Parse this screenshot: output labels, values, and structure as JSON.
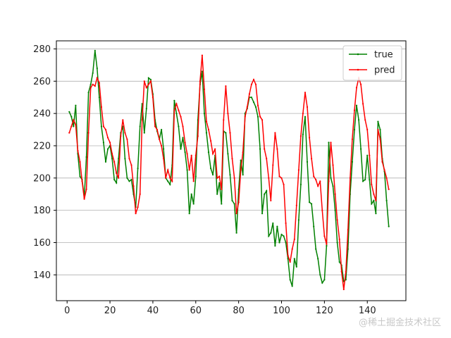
{
  "chart_data": {
    "type": "line",
    "title": "",
    "xlabel": "",
    "ylabel": "",
    "xlim": [
      -5,
      158
    ],
    "ylim": [
      124,
      285
    ],
    "xticks": [
      0,
      20,
      40,
      60,
      80,
      100,
      120,
      140
    ],
    "yticks": [
      140,
      160,
      180,
      200,
      220,
      240,
      260,
      280
    ],
    "grid": "horizontal",
    "legend_position": "top-right",
    "series": [
      {
        "name": "true",
        "color": "#008000",
        "x": [
          1,
          2,
          3,
          4,
          5,
          6,
          7,
          8,
          9,
          10,
          11,
          12,
          13,
          14,
          15,
          16,
          17,
          18,
          19,
          20,
          21,
          22,
          23,
          24,
          25,
          26,
          27,
          28,
          29,
          30,
          31,
          32,
          33,
          34,
          35,
          36,
          37,
          38,
          39,
          40,
          41,
          42,
          43,
          44,
          45,
          46,
          47,
          48,
          49,
          50,
          51,
          52,
          53,
          54,
          55,
          56,
          57,
          58,
          59,
          60,
          61,
          62,
          63,
          64,
          65,
          66,
          67,
          68,
          69,
          70,
          71,
          72,
          73,
          74,
          75,
          76,
          77,
          78,
          79,
          80,
          81,
          82,
          83,
          84,
          85,
          86,
          87,
          88,
          89,
          90,
          91,
          92,
          93,
          94,
          95,
          96,
          97,
          98,
          99,
          100,
          101,
          102,
          103,
          104,
          105,
          106,
          107,
          108,
          109,
          110,
          111,
          112,
          113,
          114,
          115,
          116,
          117,
          118,
          119,
          120,
          121,
          122,
          123,
          124,
          125,
          126,
          127,
          128,
          129,
          130,
          131,
          132,
          133,
          134,
          135,
          136,
          137,
          138,
          139,
          140,
          141,
          142,
          143,
          144,
          145,
          146,
          147,
          148,
          149,
          150
        ],
        "values": [
          241,
          238,
          232,
          245,
          215,
          201,
          199,
          188,
          213,
          253,
          258,
          265,
          279,
          268,
          250,
          232,
          222,
          210,
          218,
          220,
          212,
          199,
          197,
          212,
          228,
          232,
          212,
          200,
          198,
          199,
          190,
          182,
          206,
          232,
          246,
          228,
          243,
          262,
          261,
          252,
          236,
          229,
          224,
          230,
          218,
          200,
          198,
          196,
          208,
          248,
          240,
          232,
          218,
          225,
          216,
          205,
          178,
          190,
          184,
          201,
          236,
          258,
          266,
          240,
          228,
          216,
          206,
          202,
          214,
          190,
          197,
          184,
          229,
          228,
          215,
          202,
          186,
          184,
          166,
          193,
          211,
          202,
          240,
          243,
          250,
          250,
          247,
          244,
          238,
          218,
          178,
          190,
          192,
          164,
          166,
          172,
          158,
          170,
          160,
          165,
          164,
          160,
          150,
          137,
          133,
          150,
          145,
          174,
          196,
          227,
          238,
          210,
          185,
          184,
          170,
          156,
          150,
          140,
          135,
          137,
          158,
          222,
          200,
          195,
          180,
          160,
          148,
          146,
          136,
          137,
          156,
          190,
          210,
          230,
          245,
          236,
          218,
          198,
          199,
          214,
          199,
          184,
          186,
          178,
          235,
          230,
          212,
          204,
          186,
          170
        ]
      },
      {
        "name": "pred",
        "color": "#ff0000",
        "x": [
          1,
          2,
          3,
          4,
          5,
          6,
          7,
          8,
          9,
          10,
          11,
          12,
          13,
          14,
          15,
          16,
          17,
          18,
          19,
          20,
          21,
          22,
          23,
          24,
          25,
          26,
          27,
          28,
          29,
          30,
          31,
          32,
          33,
          34,
          35,
          36,
          37,
          38,
          39,
          40,
          41,
          42,
          43,
          44,
          45,
          46,
          47,
          48,
          49,
          50,
          51,
          52,
          53,
          54,
          55,
          56,
          57,
          58,
          59,
          60,
          61,
          62,
          63,
          64,
          65,
          66,
          67,
          68,
          69,
          70,
          71,
          72,
          73,
          74,
          75,
          76,
          77,
          78,
          79,
          80,
          81,
          82,
          83,
          84,
          85,
          86,
          87,
          88,
          89,
          90,
          91,
          92,
          93,
          94,
          95,
          96,
          97,
          98,
          99,
          100,
          101,
          102,
          103,
          104,
          105,
          106,
          107,
          108,
          109,
          110,
          111,
          112,
          113,
          114,
          115,
          116,
          117,
          118,
          119,
          120,
          121,
          122,
          123,
          124,
          125,
          126,
          127,
          128,
          129,
          130,
          131,
          132,
          133,
          134,
          135,
          136,
          137,
          138,
          139,
          140,
          141,
          142,
          143,
          144,
          145,
          146,
          147,
          148,
          149,
          150
        ],
        "values": [
          228,
          232,
          236,
          233,
          217,
          210,
          198,
          187,
          193,
          228,
          256,
          258,
          257,
          262,
          259,
          244,
          232,
          230,
          225,
          222,
          215,
          210,
          203,
          200,
          226,
          236,
          228,
          224,
          212,
          208,
          195,
          178,
          182,
          190,
          236,
          260,
          256,
          258,
          260,
          250,
          232,
          230,
          224,
          220,
          212,
          200,
          205,
          200,
          198,
          242,
          246,
          242,
          238,
          232,
          222,
          215,
          205,
          214,
          198,
          214,
          226,
          260,
          276,
          255,
          235,
          230,
          223,
          215,
          218,
          200,
          201,
          193,
          236,
          257,
          240,
          228,
          212,
          200,
          178,
          185,
          205,
          216,
          238,
          244,
          252,
          258,
          261,
          258,
          245,
          238,
          236,
          218,
          212,
          200,
          186,
          208,
          228,
          218,
          201,
          200,
          196,
          172,
          152,
          148,
          156,
          162,
          183,
          205,
          226,
          240,
          253,
          244,
          225,
          212,
          201,
          199,
          195,
          198,
          180,
          164,
          159,
          198,
          222,
          208,
          190,
          174,
          162,
          142,
          131,
          142,
          168,
          200,
          224,
          242,
          256,
          262,
          258,
          246,
          236,
          230,
          214,
          196,
          190,
          186,
          230,
          224,
          210,
          205,
          200,
          193
        ]
      }
    ]
  },
  "watermark": "@稀土掘金技术社区"
}
